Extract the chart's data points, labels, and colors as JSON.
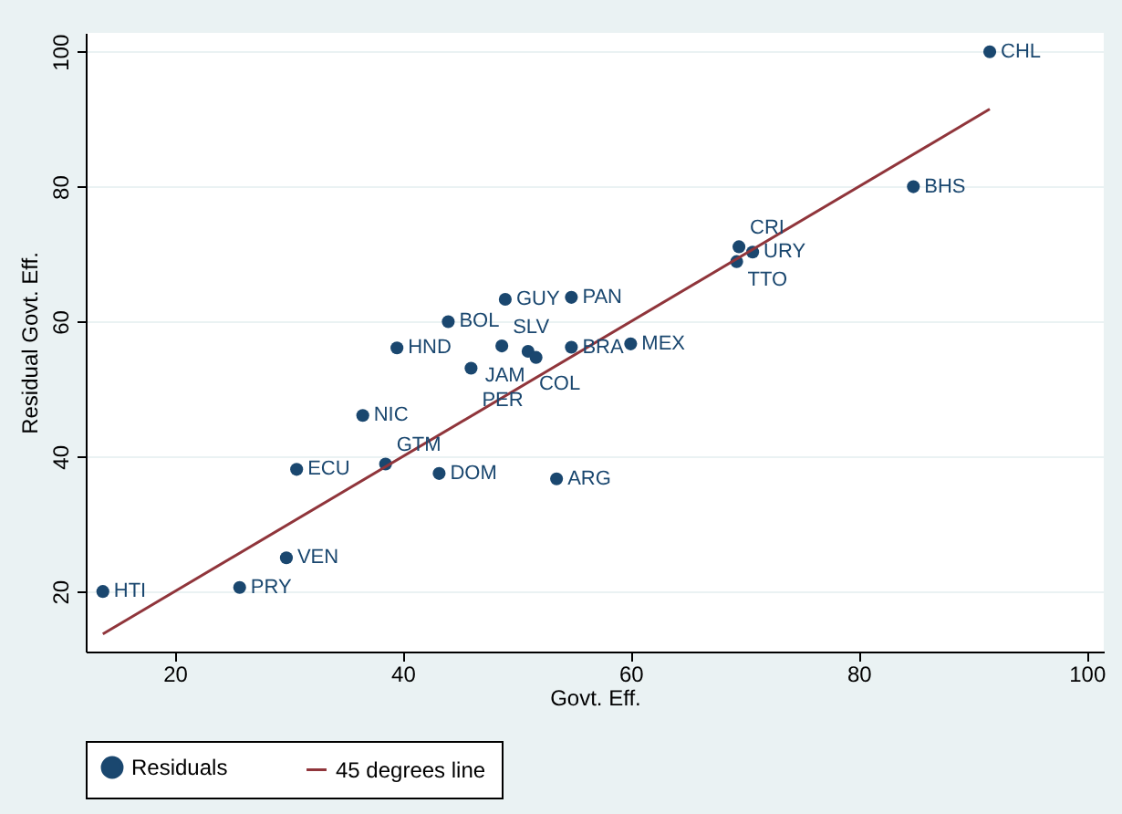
{
  "chart_data": {
    "type": "scatter",
    "xlabel": "Govt. Eff.",
    "ylabel": "Residual Govt. Eff.",
    "xlim": [
      12.2,
      101.5
    ],
    "ylim": [
      11.1,
      102.8
    ],
    "xticks": [
      20,
      40,
      60,
      80,
      100
    ],
    "yticks": [
      20,
      40,
      60,
      80,
      100
    ],
    "grid": "y",
    "legend": "bottom",
    "series": [
      {
        "name": "Residuals",
        "marker": "circle",
        "color": "#1a476f",
        "x": [
          91.5,
          84.8,
          69.5,
          70.7,
          69.3,
          49.0,
          54.8,
          44.0,
          39.5,
          48.7,
          51.0,
          51.7,
          54.8,
          60.0,
          46.0,
          36.5,
          30.7,
          38.5,
          43.2,
          53.5,
          29.8,
          25.7,
          13.7
        ],
        "values": [
          100,
          80,
          71.1,
          70.3,
          68.9,
          63.3,
          63.6,
          60.0,
          56.1,
          56.4,
          55.6,
          54.7,
          56.2,
          56.7,
          53.1,
          46.1,
          38.1,
          38.9,
          37.5,
          36.7,
          25.0,
          20.6,
          20.0
        ]
      },
      {
        "name": "45 degrees line",
        "type": "line",
        "color": "#90353b",
        "line_style": "solid",
        "x": [
          13.7,
          91.5
        ],
        "values": [
          13.7,
          91.5
        ]
      }
    ],
    "annotations": [
      {
        "text": "CHL",
        "x": 91.5,
        "y": 100
      },
      {
        "text": "BHS",
        "x": 84.8,
        "y": 80
      },
      {
        "text": "CRI",
        "x": 69.5,
        "y": 71.1
      },
      {
        "text": "URY",
        "x": 70.7,
        "y": 70.3
      },
      {
        "text": "TTO",
        "x": 69.3,
        "y": 68.9
      },
      {
        "text": "GUY",
        "x": 49.0,
        "y": 63.3
      },
      {
        "text": "PAN",
        "x": 54.8,
        "y": 63.6
      },
      {
        "text": "BOL",
        "x": 44.0,
        "y": 60.0
      },
      {
        "text": "HND",
        "x": 39.5,
        "y": 56.1
      },
      {
        "text": "SLV",
        "x": 48.7,
        "y": 56.4
      },
      {
        "text": "COL",
        "x": 51.0,
        "y": 55.6
      },
      {
        "text": "JAM",
        "x": 51.7,
        "y": 54.7
      },
      {
        "text": "BRA",
        "x": 54.8,
        "y": 56.2
      },
      {
        "text": "MEX",
        "x": 60.0,
        "y": 56.7
      },
      {
        "text": "PER",
        "x": 46.0,
        "y": 53.1
      },
      {
        "text": "NIC",
        "x": 36.5,
        "y": 46.1
      },
      {
        "text": "ECU",
        "x": 30.7,
        "y": 38.1
      },
      {
        "text": "GTM",
        "x": 38.5,
        "y": 38.9
      },
      {
        "text": "DOM",
        "x": 43.2,
        "y": 37.5
      },
      {
        "text": "ARG",
        "x": 53.5,
        "y": 36.7
      },
      {
        "text": "VEN",
        "x": 29.8,
        "y": 25.0
      },
      {
        "text": "PRY",
        "x": 25.7,
        "y": 20.6
      },
      {
        "text": "HTI",
        "x": 13.7,
        "y": 20.0
      }
    ]
  }
}
